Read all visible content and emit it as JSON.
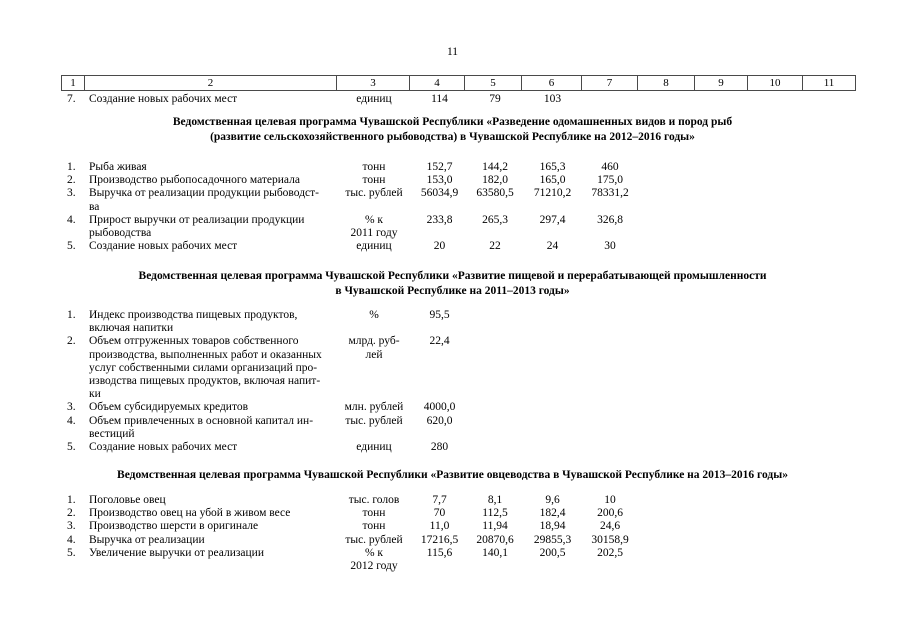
{
  "page": {
    "number": "11"
  },
  "table": {
    "header_cols": [
      "1",
      "2",
      "3",
      "4",
      "5",
      "6",
      "7",
      "8",
      "9",
      "10",
      "11"
    ],
    "row7": {
      "num": "7.",
      "label": "Создание новых рабочих мест",
      "unit": "единиц",
      "values": [
        "114",
        "79",
        "103",
        ""
      ]
    }
  },
  "sections": [
    {
      "title": "Ведомственная целевая программа Чувашской Республики «Разведение одомашненных видов и пород рыб\n(развитие сельскохозяйственного рыбоводства) в Чувашской Республике на 2012–2016 годы»",
      "rows": [
        {
          "num": "1.",
          "label": "Рыба живая",
          "unit": "тонн",
          "values": [
            "152,7",
            "144,2",
            "165,3",
            "460"
          ]
        },
        {
          "num": "2.",
          "label": "Производство рыбопосадочного материала",
          "unit": "тонн",
          "values": [
            "153,0",
            "182,0",
            "165,0",
            "175,0"
          ]
        },
        {
          "num": "3.",
          "label": "Выручка от реализации продукции рыбоводст-\nва",
          "unit": "тыс. рублей",
          "values": [
            "56034,9",
            "63580,5",
            "71210,2",
            "78331,2"
          ]
        },
        {
          "num": "4.",
          "label": "Прирост выручки от реализации продукции\nрыбоводства",
          "unit": "% к\n2011 году",
          "values": [
            "233,8",
            "265,3",
            "297,4",
            "326,8"
          ]
        },
        {
          "num": "5.",
          "label": "Создание новых рабочих мест",
          "unit": "единиц",
          "values": [
            "20",
            "22",
            "24",
            "30"
          ]
        }
      ]
    },
    {
      "title": "Ведомственная целевая программа Чувашской Республики «Развитие пищевой и перерабатывающей промышленности\nв Чувашской Республике на 2011–2013 годы»",
      "rows": [
        {
          "num": "1.",
          "label": "Индекс производства пищевых продуктов,\nвключая напитки",
          "unit": "%",
          "values": [
            "95,5",
            "",
            "",
            ""
          ]
        },
        {
          "num": "2.",
          "label": "Объем отгруженных товаров собственного\nпроизводства, выполненных работ и оказанных\nуслуг собственными силами организаций про-\nизводства пищевых продуктов, включая напит-\nки",
          "unit": "млрд. руб-\nлей",
          "values": [
            "22,4",
            "",
            "",
            ""
          ]
        },
        {
          "num": "3.",
          "label": "Объем субсидируемых кредитов",
          "unit": "млн. рублей",
          "values": [
            "4000,0",
            "",
            "",
            ""
          ]
        },
        {
          "num": "4.",
          "label": "Объем привлеченных в основной капитал ин-\nвестиций",
          "unit": "тыс. рублей",
          "values": [
            "620,0",
            "",
            "",
            ""
          ]
        },
        {
          "num": "5.",
          "label": "Создание новых рабочих мест",
          "unit": "единиц",
          "values": [
            "280",
            "",
            "",
            ""
          ]
        }
      ]
    },
    {
      "title": "Ведомственная целевая программа Чувашской Республики «Развитие овцеводства в Чувашской Республике на 2013–2016 годы»",
      "rows": [
        {
          "num": "1.",
          "label": "Поголовье овец",
          "unit": "тыс. голов",
          "values": [
            "7,7",
            "8,1",
            "9,6",
            "10"
          ]
        },
        {
          "num": "2.",
          "label": "Производство овец на убой в живом весе",
          "unit": "тонн",
          "values": [
            "70",
            "112,5",
            "182,4",
            "200,6"
          ]
        },
        {
          "num": "3.",
          "label": "Производство шерсти в оригинале",
          "unit": "тонн",
          "values": [
            "11,0",
            "11,94",
            "18,94",
            "24,6"
          ]
        },
        {
          "num": "4.",
          "label": "Выручка от реализации",
          "unit": "тыс. рублей",
          "values": [
            "17216,5",
            "20870,6",
            "29855,3",
            "30158,9"
          ]
        },
        {
          "num": "5.",
          "label": "Увеличение выручки от реализации",
          "unit": "% к\n2012 году",
          "values": [
            "115,6",
            "140,1",
            "200,5",
            "202,5"
          ]
        }
      ]
    }
  ]
}
